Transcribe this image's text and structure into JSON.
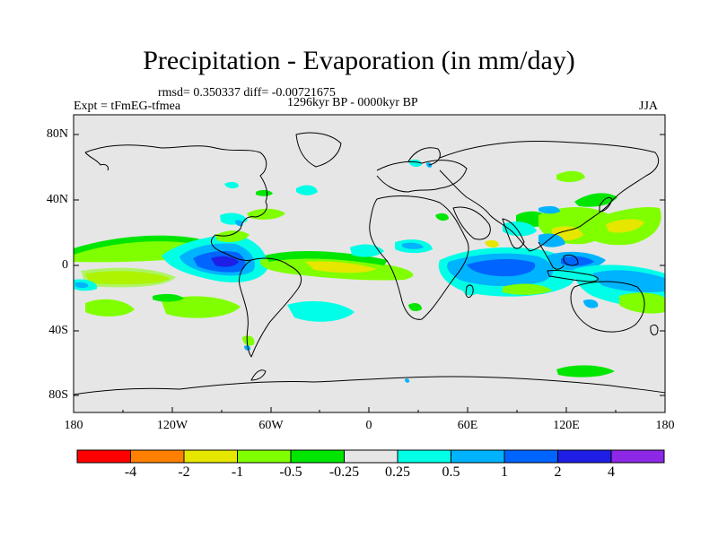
{
  "title": "Precipitation - Evaporation (in mm/day)",
  "stats": "rmsd= 0.350337 diff= -0.00721675",
  "expt": "Expt = tFmEG-tfmea",
  "period": "1296kyr BP - 0000kyr BP",
  "season": "JJA",
  "lat_labels": [
    "80N",
    "40N",
    "0",
    "40S",
    "80S"
  ],
  "lon_labels": [
    "180",
    "120W",
    "60W",
    "0",
    "60E",
    "120E",
    "180"
  ],
  "colorbar": {
    "labels": [
      "-4",
      "-2",
      "-1",
      "-0.5",
      "-0.25",
      "0.25",
      "0.5",
      "1",
      "2",
      "4"
    ],
    "colors": [
      "#ff0000",
      "#ff8000",
      "#e6e600",
      "#80ff00",
      "#00e600",
      "#e6e6e6",
      "#00ffe6",
      "#00b3ff",
      "#0064ff",
      "#1e1ee6",
      "#8c28e6"
    ]
  },
  "colors": {
    "ocean_bg": "#e6e6e6",
    "coast": "#000000",
    "neg_light": "#00e600",
    "neg_mid": "#80ff00",
    "neg_strong": "#e6e600",
    "pos_light": "#00ffe6",
    "pos_mid": "#00b3ff",
    "pos_strong": "#0064ff",
    "pos_max": "#1e1ee6"
  }
}
